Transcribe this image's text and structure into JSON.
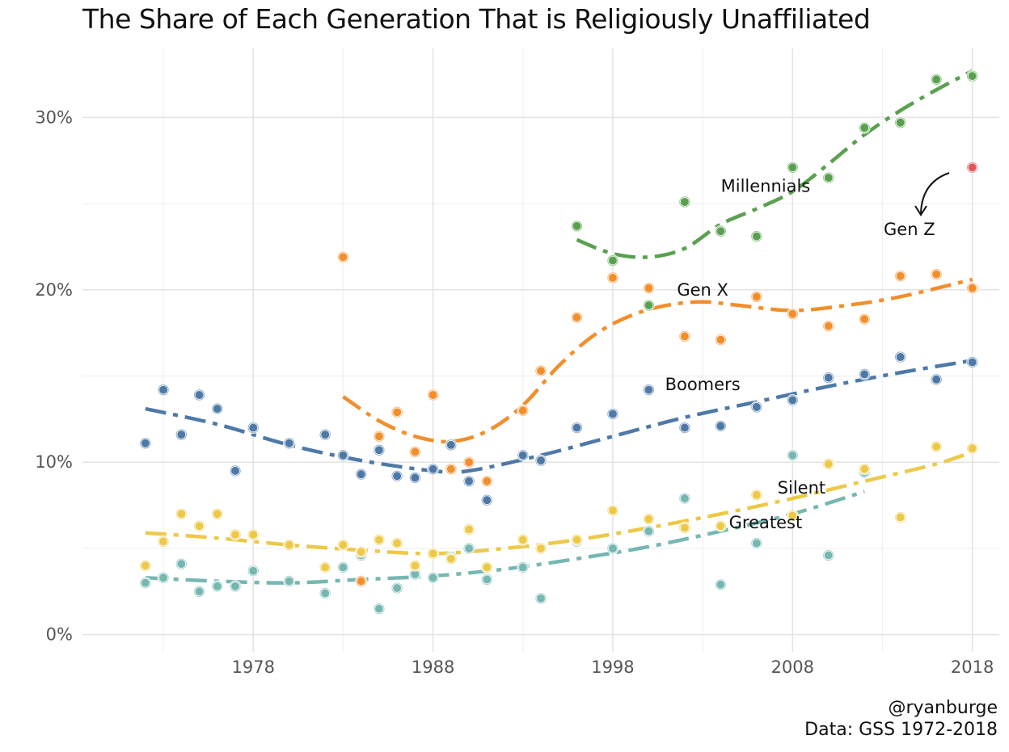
{
  "chart_data": {
    "type": "scatter",
    "title": "The Share of Each Generation That is Religiously Unaffiliated",
    "xlabel": "",
    "ylabel": "",
    "xlim": [
      1968.5,
      2019.5
    ],
    "ylim": [
      -1,
      34
    ],
    "x_ticks": [
      1978,
      1988,
      1998,
      2008,
      2018
    ],
    "x_tick_labels": [
      "1978",
      "1988",
      "1998",
      "2008",
      "2018"
    ],
    "y_ticks": [
      0,
      10,
      20,
      30
    ],
    "y_tick_labels": [
      "0%",
      "10%",
      "20%",
      "30%"
    ],
    "grid": true,
    "legend": "none (direct labels)",
    "series": [
      {
        "name": "Greatest",
        "color": "#76b7b2",
        "label_pos": [
          2006.5,
          6.5
        ],
        "x": [
          1972,
          1973,
          1974,
          1975,
          1976,
          1977,
          1978,
          1980,
          1982,
          1983,
          1984,
          1985,
          1986,
          1987,
          1988,
          1989,
          1990,
          1991,
          1993,
          1994,
          1996,
          1998,
          2000,
          2002,
          2004,
          2006,
          2008,
          2010,
          2012
        ],
        "y": [
          3.0,
          3.3,
          4.1,
          2.5,
          2.8,
          2.8,
          3.7,
          3.1,
          2.4,
          3.9,
          4.6,
          1.5,
          2.7,
          3.5,
          3.3,
          4.5,
          5.0,
          3.2,
          3.9,
          2.1,
          5.4,
          5.0,
          6.0,
          7.9,
          2.9,
          5.3,
          10.4,
          4.6,
          9.4
        ],
        "trend": [
          [
            1972,
            3.3
          ],
          [
            1976,
            3.1
          ],
          [
            1980,
            3.0
          ],
          [
            1984,
            3.2
          ],
          [
            1988,
            3.4
          ],
          [
            1992,
            3.8
          ],
          [
            1996,
            4.4
          ],
          [
            2000,
            5.1
          ],
          [
            2004,
            6.0
          ],
          [
            2008,
            7.0
          ],
          [
            2012,
            8.3
          ]
        ]
      },
      {
        "name": "Silent",
        "color": "#edc948",
        "label_pos": [
          2008.5,
          8.5
        ],
        "x": [
          1972,
          1973,
          1974,
          1975,
          1976,
          1977,
          1978,
          1980,
          1982,
          1983,
          1984,
          1985,
          1986,
          1987,
          1988,
          1989,
          1990,
          1991,
          1993,
          1994,
          1996,
          1998,
          2000,
          2002,
          2004,
          2006,
          2008,
          2010,
          2012,
          2014,
          2016,
          2018
        ],
        "y": [
          4.0,
          5.4,
          7.0,
          6.3,
          7.0,
          5.8,
          5.8,
          5.2,
          3.9,
          5.2,
          4.8,
          5.5,
          5.3,
          4.0,
          4.7,
          4.4,
          6.1,
          3.9,
          5.5,
          5.0,
          5.5,
          7.2,
          6.7,
          6.2,
          6.3,
          8.1,
          6.9,
          9.9,
          9.6,
          6.8,
          10.9,
          10.8
        ],
        "trend": [
          [
            1972,
            5.9
          ],
          [
            1976,
            5.6
          ],
          [
            1980,
            5.2
          ],
          [
            1984,
            4.9
          ],
          [
            1988,
            4.7
          ],
          [
            1992,
            5.0
          ],
          [
            1996,
            5.5
          ],
          [
            2000,
            6.2
          ],
          [
            2004,
            7.0
          ],
          [
            2008,
            7.9
          ],
          [
            2012,
            8.9
          ],
          [
            2016,
            9.9
          ],
          [
            2018,
            10.6
          ]
        ]
      },
      {
        "name": "Boomers",
        "color": "#4e79a7",
        "label_pos": [
          2003,
          14.5
        ],
        "x": [
          1972,
          1973,
          1974,
          1975,
          1976,
          1977,
          1978,
          1980,
          1982,
          1983,
          1984,
          1985,
          1986,
          1987,
          1988,
          1989,
          1990,
          1991,
          1993,
          1994,
          1996,
          1998,
          2000,
          2002,
          2004,
          2006,
          2008,
          2010,
          2012,
          2014,
          2016,
          2018
        ],
        "y": [
          11.1,
          14.2,
          11.6,
          13.9,
          13.1,
          9.5,
          12.0,
          11.1,
          11.6,
          10.4,
          9.3,
          10.7,
          9.2,
          9.1,
          9.6,
          11.0,
          8.9,
          7.8,
          10.4,
          10.1,
          12.0,
          12.8,
          14.2,
          12.0,
          12.1,
          13.2,
          13.6,
          14.9,
          15.1,
          16.1,
          14.8,
          15.8
        ],
        "trend": [
          [
            1972,
            13.1
          ],
          [
            1976,
            12.2
          ],
          [
            1980,
            11.0
          ],
          [
            1984,
            10.1
          ],
          [
            1988,
            9.5
          ],
          [
            1990,
            9.5
          ],
          [
            1994,
            10.4
          ],
          [
            1998,
            11.5
          ],
          [
            2002,
            12.6
          ],
          [
            2006,
            13.5
          ],
          [
            2010,
            14.4
          ],
          [
            2014,
            15.2
          ],
          [
            2018,
            15.9
          ]
        ]
      },
      {
        "name": "Gen X",
        "color": "#f28e2b",
        "label_pos": [
          2003,
          20
        ],
        "x": [
          1983,
          1984,
          1985,
          1986,
          1987,
          1988,
          1989,
          1990,
          1991,
          1993,
          1994,
          1996,
          1998,
          2000,
          2002,
          2004,
          2006,
          2008,
          2010,
          2012,
          2014,
          2016,
          2018
        ],
        "y": [
          21.9,
          3.1,
          11.5,
          12.9,
          10.6,
          13.9,
          9.6,
          10.0,
          8.9,
          13.0,
          15.3,
          18.4,
          20.7,
          20.1,
          17.3,
          17.1,
          19.6,
          18.6,
          17.9,
          18.3,
          20.8,
          20.9,
          20.1
        ],
        "trend": [
          [
            1983,
            13.8
          ],
          [
            1985,
            12.4
          ],
          [
            1987,
            11.5
          ],
          [
            1989,
            11.2
          ],
          [
            1991,
            11.8
          ],
          [
            1993,
            13.3
          ],
          [
            1995,
            15.6
          ],
          [
            1997,
            17.4
          ],
          [
            1999,
            18.5
          ],
          [
            2001,
            19.1
          ],
          [
            2003,
            19.3
          ],
          [
            2005,
            19.1
          ],
          [
            2008,
            18.8
          ],
          [
            2011,
            19.1
          ],
          [
            2014,
            19.6
          ],
          [
            2018,
            20.6
          ]
        ]
      },
      {
        "name": "Millennials",
        "color": "#59a14f",
        "label_pos": [
          2006.5,
          26
        ],
        "x": [
          1996,
          1998,
          2000,
          2002,
          2004,
          2006,
          2008,
          2010,
          2012,
          2014,
          2016,
          2018
        ],
        "y": [
          23.7,
          21.7,
          19.1,
          25.1,
          23.4,
          23.1,
          27.1,
          26.5,
          29.4,
          29.7,
          32.2,
          32.4
        ],
        "trend": [
          [
            1996,
            22.9
          ],
          [
            1998,
            22.1
          ],
          [
            2000,
            21.9
          ],
          [
            2002,
            22.4
          ],
          [
            2004,
            23.8
          ],
          [
            2006,
            24.7
          ],
          [
            2008,
            25.7
          ],
          [
            2010,
            27.3
          ],
          [
            2012,
            29.0
          ],
          [
            2014,
            30.4
          ],
          [
            2016,
            31.6
          ],
          [
            2018,
            32.7
          ]
        ]
      },
      {
        "name": "Gen Z",
        "color": "#e15759",
        "label_pos": [
          2014.5,
          23.5
        ],
        "x": [
          2018
        ],
        "y": [
          27.1
        ],
        "trend": []
      }
    ],
    "annotations": [
      "@ryanburge",
      "Data: GSS 1972-2018"
    ]
  },
  "caption": {
    "credit": "@ryanburge",
    "source": "Data: GSS 1972-2018"
  }
}
